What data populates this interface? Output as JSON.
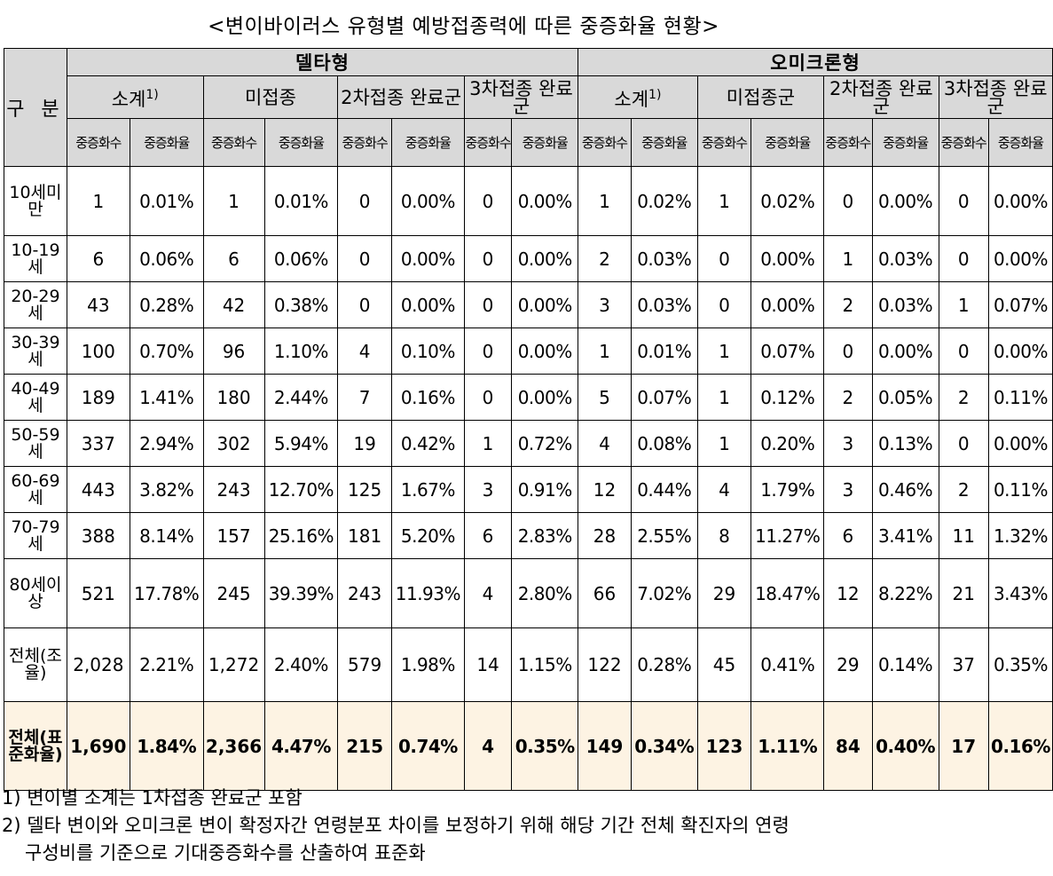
{
  "title": "<변이바이러스 유형별 예방접종력에 따른 중증화율 현황>",
  "header": {
    "gubun": "구 분",
    "delta": "델타형",
    "omicron": "오미크론형",
    "delta_groups": [
      {
        "label": "소계",
        "sup": "1)"
      },
      {
        "label": "미접종",
        "sup": ""
      },
      {
        "label": "2차접종 완료군",
        "sup": ""
      },
      {
        "label": "3차접종 완료군",
        "sup": ""
      }
    ],
    "omicron_groups": [
      {
        "label": "소계",
        "sup": "1)"
      },
      {
        "label": "미접종군",
        "sup": ""
      },
      {
        "label": "2차접종 완료군",
        "sup": ""
      },
      {
        "label": "3차접종 완료군",
        "sup": ""
      }
    ],
    "sub_cases": "중증화수",
    "sub_rate": "중증화율"
  },
  "rows": [
    {
      "age": "10세미만",
      "cells": [
        "1",
        "0.01%",
        "1",
        "0.01%",
        "0",
        "0.00%",
        "0",
        "0.00%",
        "1",
        "0.02%",
        "1",
        "0.02%",
        "0",
        "0.00%",
        "0",
        "0.00%"
      ]
    },
    {
      "age": "10-19세",
      "cells": [
        "6",
        "0.06%",
        "6",
        "0.06%",
        "0",
        "0.00%",
        "0",
        "0.00%",
        "2",
        "0.03%",
        "0",
        "0.00%",
        "1",
        "0.03%",
        "0",
        "0.00%"
      ]
    },
    {
      "age": "20-29세",
      "cells": [
        "43",
        "0.28%",
        "42",
        "0.38%",
        "0",
        "0.00%",
        "0",
        "0.00%",
        "3",
        "0.03%",
        "0",
        "0.00%",
        "2",
        "0.03%",
        "1",
        "0.07%"
      ]
    },
    {
      "age": "30-39세",
      "cells": [
        "100",
        "0.70%",
        "96",
        "1.10%",
        "4",
        "0.10%",
        "0",
        "0.00%",
        "1",
        "0.01%",
        "1",
        "0.07%",
        "0",
        "0.00%",
        "0",
        "0.00%"
      ]
    },
    {
      "age": "40-49세",
      "cells": [
        "189",
        "1.41%",
        "180",
        "2.44%",
        "7",
        "0.16%",
        "0",
        "0.00%",
        "5",
        "0.07%",
        "1",
        "0.12%",
        "2",
        "0.05%",
        "2",
        "0.11%"
      ]
    },
    {
      "age": "50-59세",
      "cells": [
        "337",
        "2.94%",
        "302",
        "5.94%",
        "19",
        "0.42%",
        "1",
        "0.72%",
        "4",
        "0.08%",
        "1",
        "0.20%",
        "3",
        "0.13%",
        "0",
        "0.00%"
      ]
    },
    {
      "age": "60-69세",
      "cells": [
        "443",
        "3.82%",
        "243",
        "12.70%",
        "125",
        "1.67%",
        "3",
        "0.91%",
        "12",
        "0.44%",
        "4",
        "1.79%",
        "3",
        "0.46%",
        "2",
        "0.11%"
      ]
    },
    {
      "age": "70-79세",
      "cells": [
        "388",
        "8.14%",
        "157",
        "25.16%",
        "181",
        "5.20%",
        "6",
        "2.83%",
        "28",
        "2.55%",
        "8",
        "11.27%",
        "6",
        "3.41%",
        "11",
        "1.32%"
      ]
    },
    {
      "age": "80세이상",
      "cells": [
        "521",
        "17.78%",
        "245",
        "39.39%",
        "243",
        "11.93%",
        "4",
        "2.80%",
        "66",
        "7.02%",
        "29",
        "18.47%",
        "12",
        "8.22%",
        "21",
        "3.43%"
      ]
    },
    {
      "age": "전체(조율)",
      "cells": [
        "2,028",
        "2.21%",
        "1,272",
        "2.40%",
        "579",
        "1.98%",
        "14",
        "1.15%",
        "122",
        "0.28%",
        "45",
        "0.41%",
        "29",
        "0.14%",
        "37",
        "0.35%"
      ]
    },
    {
      "age": "전체(표준화율)",
      "cells": [
        "1,690",
        "1.84%",
        "2,366",
        "4.47%",
        "215",
        "0.74%",
        "4",
        "0.35%",
        "149",
        "0.34%",
        "123",
        "1.11%",
        "84",
        "0.40%",
        "17",
        "0.16%"
      ]
    }
  ],
  "notes": [
    "1) 변이별 소계는 1차접종 완료군 포함",
    "2) 델타 변이와 오미크론 변이 확정자간 연령분포 차이를 보정하기 위해 해당 기간 전체 확진자의 연령",
    "구성비를 기준으로 기대중증화수를 산출하여 표준화"
  ],
  "colors": {
    "header_bg": "#d9d9d9",
    "standardized_row_bg": "#fdf3e3"
  }
}
